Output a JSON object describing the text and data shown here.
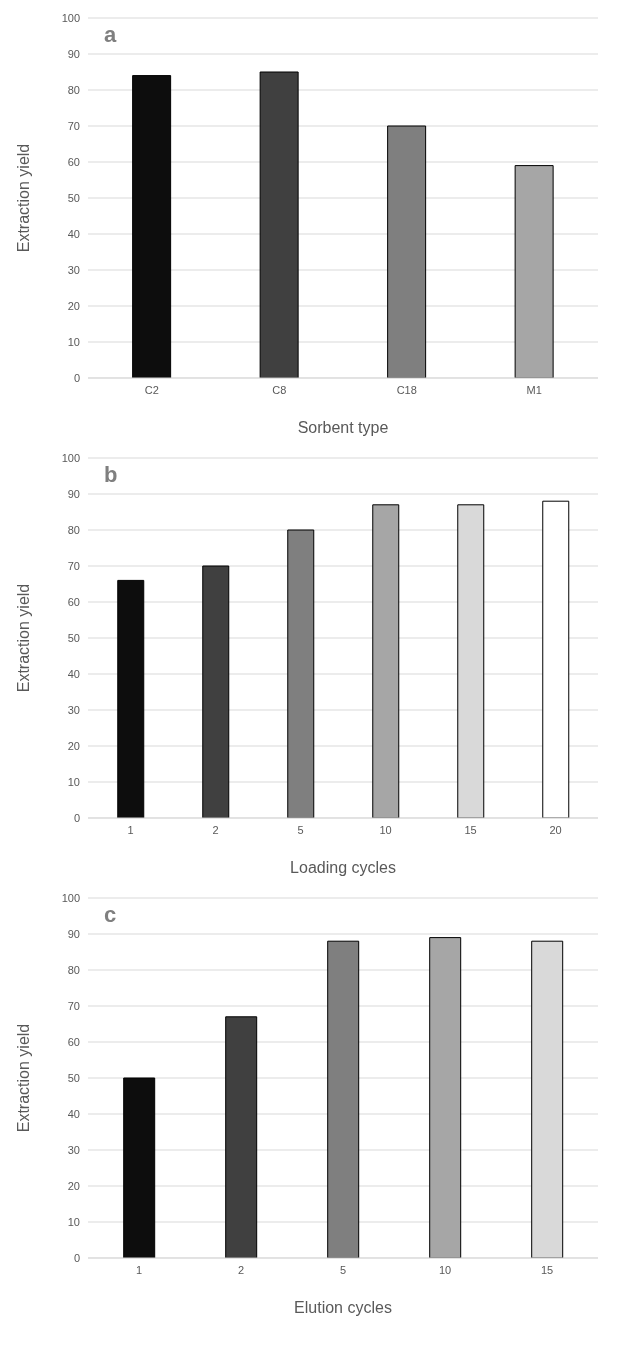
{
  "chart_data": [
    {
      "type": "bar",
      "annotations": [
        "a"
      ],
      "xlabel": "Sorbent type",
      "ylabel": "Extraction yield",
      "categories": [
        "C2",
        "C8",
        "C18",
        "M1"
      ],
      "values": [
        84,
        85,
        70,
        59
      ],
      "colors": [
        "#0d0d0d",
        "#404040",
        "#7f7f7f",
        "#a6a6a6"
      ],
      "ylim": [
        0,
        100
      ],
      "yticks": [
        0,
        10,
        20,
        30,
        40,
        50,
        60,
        70,
        80,
        90,
        100
      ],
      "grid": "y"
    },
    {
      "type": "bar",
      "annotations": [
        "b"
      ],
      "xlabel": "Loading cycles",
      "ylabel": "Extraction yield",
      "categories": [
        "1",
        "2",
        "5",
        "10",
        "15",
        "20"
      ],
      "values": [
        66,
        70,
        80,
        87,
        87,
        88
      ],
      "colors": [
        "#0d0d0d",
        "#404040",
        "#7f7f7f",
        "#a6a6a6",
        "#d9d9d9",
        "#ffffff"
      ],
      "ylim": [
        0,
        100
      ],
      "yticks": [
        0,
        10,
        20,
        30,
        40,
        50,
        60,
        70,
        80,
        90,
        100
      ],
      "grid": "y"
    },
    {
      "type": "bar",
      "annotations": [
        "c"
      ],
      "xlabel": "Elution cycles",
      "ylabel": "Extraction yield",
      "categories": [
        "1",
        "2",
        "5",
        "10",
        "15"
      ],
      "values": [
        50,
        67,
        88,
        89,
        88
      ],
      "colors": [
        "#0d0d0d",
        "#404040",
        "#7f7f7f",
        "#a6a6a6",
        "#d9d9d9"
      ],
      "ylim": [
        0,
        100
      ],
      "yticks": [
        0,
        10,
        20,
        30,
        40,
        50,
        60,
        70,
        80,
        90,
        100
      ],
      "grid": "y"
    }
  ]
}
